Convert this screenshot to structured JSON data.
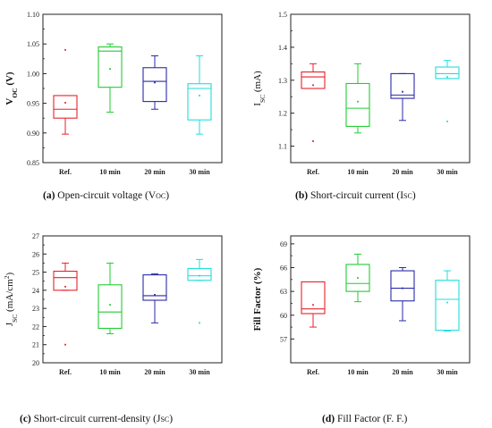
{
  "chart_data": [
    {
      "id": "voc",
      "type": "box",
      "ylabel": {
        "main": "V",
        "sub": "OC",
        "unit": " (V)"
      },
      "ylabel_bold": true,
      "ylim": [
        0.85,
        1.1
      ],
      "yticks": [
        0.85,
        0.9,
        0.95,
        1.0,
        1.05,
        1.1
      ],
      "ytick_labels": [
        "0.85",
        "0.90",
        "0.95",
        "1.00",
        "1.05",
        "1.10"
      ],
      "categories": [
        "Ref.",
        "10 min",
        "20 min",
        "30 min"
      ],
      "colors": [
        "#e8222a",
        "#22cc33",
        "#2a2aa8",
        "#22dddd"
      ],
      "boxes": [
        {
          "min": 0.898,
          "q1": 0.925,
          "median": 0.94,
          "q3": 0.963,
          "max": 0.963,
          "mean": 0.951,
          "outliers": [
            1.04
          ]
        },
        {
          "min": 0.935,
          "q1": 0.977,
          "median": 1.038,
          "q3": 1.045,
          "max": 1.05,
          "mean": 1.008,
          "outliers": []
        },
        {
          "min": 0.94,
          "q1": 0.953,
          "median": 0.987,
          "q3": 1.01,
          "max": 1.03,
          "mean": 0.985,
          "outliers": []
        },
        {
          "min": 0.898,
          "q1": 0.922,
          "median": 0.975,
          "q3": 0.983,
          "max": 1.03,
          "mean": 0.963,
          "outliers": []
        }
      ],
      "caption": {
        "letter": "(a)",
        "text": " Open-circuit voltage (V",
        "sub": "OC",
        "end": ")"
      }
    },
    {
      "id": "isc",
      "type": "box",
      "ylabel": {
        "main": "I",
        "sub": "SC",
        "unit": " (mA)"
      },
      "ylabel_bold": false,
      "ylim": [
        1.05,
        1.5
      ],
      "yticks": [
        1.1,
        1.2,
        1.3,
        1.4,
        1.5
      ],
      "ytick_labels": [
        "1.1",
        "1.2",
        "1.3",
        "1.4",
        "1.5"
      ],
      "categories": [
        "Ref.",
        "10 min",
        "20 min",
        "30 min"
      ],
      "colors": [
        "#e8222a",
        "#22cc33",
        "#2a2aa8",
        "#22dddd"
      ],
      "boxes": [
        {
          "min": 1.275,
          "q1": 1.275,
          "median": 1.31,
          "q3": 1.325,
          "max": 1.35,
          "mean": 1.285,
          "outliers": [
            1.115
          ]
        },
        {
          "min": 1.14,
          "q1": 1.16,
          "median": 1.215,
          "q3": 1.29,
          "max": 1.35,
          "mean": 1.235,
          "outliers": []
        },
        {
          "min": 1.178,
          "q1": 1.245,
          "median": 1.255,
          "q3": 1.32,
          "max": 1.32,
          "mean": 1.265,
          "outliers": []
        },
        {
          "min": 1.305,
          "q1": 1.305,
          "median": 1.32,
          "q3": 1.34,
          "max": 1.36,
          "mean": 1.31,
          "outliers": [
            1.175
          ]
        }
      ],
      "caption": {
        "letter": "(b)",
        "text": " Short-circuit current (I",
        "sub": "SC",
        "end": ")"
      }
    },
    {
      "id": "jsc",
      "type": "box",
      "ylabel": {
        "main": "J",
        "sub": "SC",
        "unit": " (mA/cm",
        "sup": "2",
        "end": ")"
      },
      "ylabel_bold": false,
      "ylim": [
        20,
        27
      ],
      "yticks": [
        20,
        21,
        22,
        23,
        24,
        25,
        26,
        27
      ],
      "ytick_labels": [
        "20",
        "21",
        "22",
        "23",
        "24",
        "25",
        "26",
        "27"
      ],
      "categories": [
        "Ref.",
        "10 min",
        "20 min",
        "30 min"
      ],
      "colors": [
        "#e8222a",
        "#22cc33",
        "#2a2aa8",
        "#22dddd"
      ],
      "boxes": [
        {
          "min": 24.0,
          "q1": 24.0,
          "median": 24.7,
          "q3": 25.05,
          "max": 25.5,
          "mean": 24.2,
          "outliers": [
            21.0
          ]
        },
        {
          "min": 21.6,
          "q1": 21.9,
          "median": 22.8,
          "q3": 24.3,
          "max": 25.5,
          "mean": 23.2,
          "outliers": []
        },
        {
          "min": 22.2,
          "q1": 23.45,
          "median": 23.7,
          "q3": 24.85,
          "max": 24.9,
          "mean": 23.75,
          "outliers": []
        },
        {
          "min": 24.55,
          "q1": 24.55,
          "median": 24.8,
          "q3": 25.2,
          "max": 25.7,
          "mean": 24.8,
          "outliers": [
            22.2
          ]
        }
      ],
      "caption": {
        "letter": "(c)",
        "text": " Short-circuit current-density (J",
        "sub": "SC",
        "end": ")"
      }
    },
    {
      "id": "ff",
      "type": "box",
      "ylabel": {
        "main": "Fill Factor (%)"
      },
      "ylabel_bold": true,
      "ylim": [
        54,
        70
      ],
      "yticks": [
        57,
        60,
        63,
        66,
        69
      ],
      "ytick_labels": [
        "57",
        "60",
        "63",
        "66",
        "69"
      ],
      "categories": [
        "Ref.",
        "10 min",
        "20 min",
        "30 min"
      ],
      "colors": [
        "#e8222a",
        "#22cc33",
        "#2a2aa8",
        "#22dddd"
      ],
      "boxes": [
        {
          "min": 58.5,
          "q1": 60.2,
          "median": 60.8,
          "q3": 64.2,
          "max": 64.2,
          "mean": 61.3,
          "outliers": []
        },
        {
          "min": 61.7,
          "q1": 63.0,
          "median": 64.0,
          "q3": 66.4,
          "max": 67.7,
          "mean": 64.7,
          "outliers": []
        },
        {
          "min": 59.3,
          "q1": 61.8,
          "median": 63.4,
          "q3": 65.6,
          "max": 66.0,
          "mean": 63.4,
          "outliers": []
        },
        {
          "min": 58.0,
          "q1": 58.1,
          "median": 62.0,
          "q3": 64.4,
          "max": 65.6,
          "mean": 61.6,
          "outliers": []
        }
      ],
      "caption": {
        "letter": "(d)",
        "text": " Fill Factor (F. F.)",
        "sub": "",
        "end": ""
      }
    }
  ]
}
